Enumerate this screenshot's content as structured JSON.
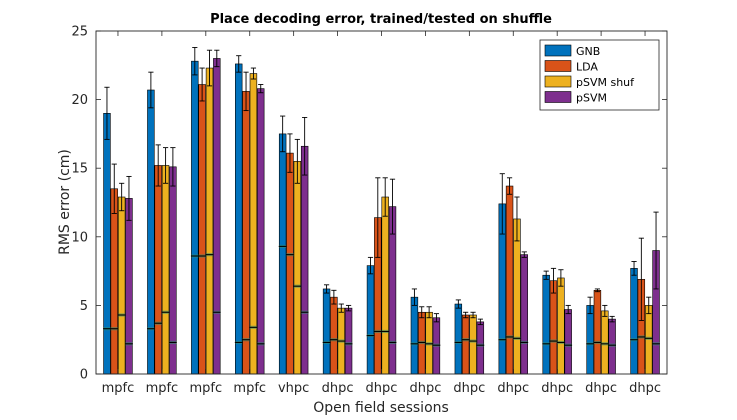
{
  "chart_data": {
    "type": "bar",
    "title": "Place decoding error, trained/tested on shuffle",
    "xlabel": "Open field sessions",
    "ylabel": "RMS error (cm)",
    "ylim": [
      0,
      25
    ],
    "yticks": [
      0,
      5,
      10,
      15,
      20,
      25
    ],
    "legend_position": "top-right",
    "categories": [
      "mpfc",
      "mpfc",
      "mpfc",
      "mpfc",
      "vhpc",
      "dhpc",
      "dhpc",
      "dhpc",
      "dhpc",
      "dhpc",
      "dhpc",
      "dhpc",
      "dhpc"
    ],
    "series": [
      {
        "name": "GNB",
        "color": "#0072BD",
        "values": [
          19.0,
          20.7,
          22.8,
          22.6,
          17.5,
          6.2,
          7.9,
          5.6,
          5.1,
          12.4,
          7.2,
          5.0,
          7.7
        ],
        "error": [
          1.9,
          1.3,
          1.0,
          0.6,
          1.3,
          0.3,
          0.6,
          0.6,
          0.3,
          2.2,
          0.3,
          0.6,
          0.5
        ],
        "shuffle": [
          3.3,
          3.3,
          8.6,
          2.3,
          9.3,
          2.3,
          2.8,
          2.2,
          2.3,
          2.5,
          2.2,
          2.2,
          2.5
        ]
      },
      {
        "name": "LDA",
        "color": "#D95319",
        "values": [
          13.5,
          15.2,
          21.1,
          20.6,
          16.1,
          5.6,
          11.4,
          4.5,
          4.3,
          13.7,
          6.8,
          6.1,
          6.9
        ],
        "error": [
          1.8,
          1.5,
          1.2,
          1.4,
          1.4,
          0.5,
          2.9,
          0.4,
          0.2,
          0.6,
          0.9,
          0.1,
          3.0
        ],
        "shuffle": [
          3.3,
          3.7,
          8.6,
          2.5,
          8.7,
          2.5,
          3.1,
          2.3,
          2.5,
          2.7,
          2.4,
          2.3,
          2.7
        ]
      },
      {
        "name": "pSVM shuf",
        "color": "#EDB120",
        "values": [
          12.9,
          15.2,
          22.3,
          21.9,
          15.5,
          4.8,
          12.9,
          4.5,
          4.3,
          11.3,
          7.0,
          4.6,
          5.0
        ],
        "error": [
          1.0,
          1.3,
          1.3,
          0.4,
          1.6,
          0.3,
          1.4,
          0.4,
          0.2,
          1.6,
          0.6,
          0.4,
          0.6
        ],
        "shuffle": [
          4.3,
          4.5,
          8.7,
          3.4,
          6.4,
          2.4,
          3.1,
          2.2,
          2.4,
          2.6,
          2.3,
          2.2,
          2.6
        ]
      },
      {
        "name": "pSVM",
        "color": "#7E2F8E",
        "values": [
          12.8,
          15.1,
          23.0,
          20.8,
          16.6,
          4.8,
          12.2,
          4.1,
          3.8,
          8.7,
          4.7,
          4.0,
          9.0
        ],
        "error": [
          1.6,
          1.4,
          0.6,
          0.3,
          2.1,
          0.2,
          2.0,
          0.3,
          0.2,
          0.2,
          0.3,
          0.2,
          2.8
        ],
        "shuffle": [
          2.2,
          2.3,
          4.5,
          2.2,
          4.5,
          2.2,
          2.3,
          2.1,
          2.1,
          2.3,
          2.1,
          2.1,
          2.2
        ]
      }
    ]
  }
}
